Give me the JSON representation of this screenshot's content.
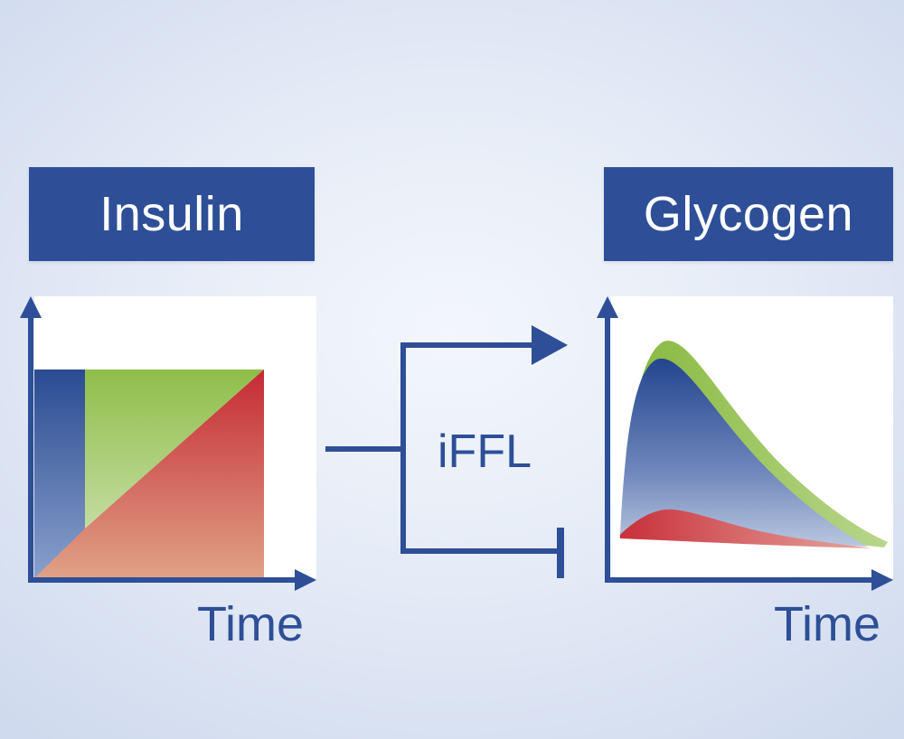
{
  "input_signal": {
    "title": "Insulin",
    "x_axis_label": "Time"
  },
  "motif": {
    "label": "iFFL"
  },
  "output_response": {
    "title": "Glycogen",
    "x_axis_label": "Time"
  },
  "colors": {
    "header_blue": "#2e4f97",
    "signal_green": "#8fbe4a",
    "signal_red": "#c8303a",
    "signal_blue": "#2e4f97"
  }
}
